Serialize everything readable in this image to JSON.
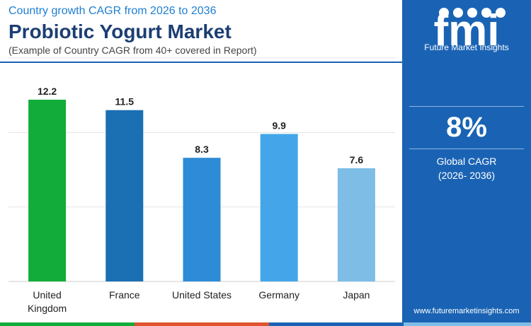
{
  "header": {
    "kicker": "Country growth CAGR from 2026 to 2036",
    "title": "Probiotic Yogurt Market",
    "subtitle": "(Example of Country CAGR from 40+ covered in Report)"
  },
  "sidebar": {
    "brand": "fmi",
    "brand_name": "Future Market Insights",
    "headline_value": "8%",
    "headline_label_1": "Global CAGR",
    "headline_label_2": "(2026- 2036)",
    "url": "www.futuremarketinsights.com"
  },
  "colors": {
    "bars": [
      "#12ac3a",
      "#1b6fb3",
      "#2e8bd7",
      "#44a6e8",
      "#7dbde6"
    ],
    "sidebar": "#1a63b4",
    "title": "#1c3e73",
    "strip": [
      "#12ac3a",
      "#e0532f",
      "#1a63b4",
      "#7dbde6"
    ]
  },
  "chart_data": {
    "type": "bar",
    "categories": [
      "United Kingdom",
      "France",
      "United States",
      "Germany",
      "Japan"
    ],
    "values": [
      12.2,
      11.5,
      8.3,
      9.9,
      7.6
    ],
    "title": "Probiotic Yogurt Market",
    "xlabel": "",
    "ylabel": "",
    "ylim": [
      0,
      15
    ],
    "grid": true,
    "legend": "none"
  }
}
